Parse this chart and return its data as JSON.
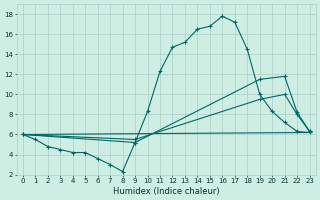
{
  "xlabel": "Humidex (Indice chaleur)",
  "bg_color": "#ceeee4",
  "grid_color": "#aacfc6",
  "line_color": "#006666",
  "xlim": [
    -0.5,
    23.5
  ],
  "ylim": [
    2,
    19
  ],
  "xticks": [
    0,
    1,
    2,
    3,
    4,
    5,
    6,
    7,
    8,
    9,
    10,
    11,
    12,
    13,
    14,
    15,
    16,
    17,
    18,
    19,
    20,
    21,
    22,
    23
  ],
  "yticks": [
    2,
    4,
    6,
    8,
    10,
    12,
    14,
    16,
    18
  ],
  "line1_x": [
    0,
    1,
    2,
    3,
    4,
    5,
    6,
    7,
    8,
    9,
    10,
    11,
    12,
    13,
    14,
    15,
    16,
    17,
    18,
    19,
    20,
    21,
    22,
    23
  ],
  "line1_y": [
    6.0,
    5.5,
    4.8,
    4.5,
    4.2,
    4.2,
    3.6,
    3.0,
    2.3,
    5.2,
    8.3,
    12.3,
    14.7,
    15.2,
    16.5,
    16.8,
    17.8,
    17.2,
    14.5,
    10.0,
    8.3,
    7.2,
    6.3,
    6.2
  ],
  "line2_x": [
    0,
    23
  ],
  "line2_y": [
    6.0,
    6.2
  ],
  "line3_x": [
    0,
    9,
    19,
    21,
    22,
    23
  ],
  "line3_y": [
    6.0,
    5.5,
    9.5,
    10.0,
    8.0,
    6.3
  ],
  "line4_x": [
    0,
    9,
    19,
    21,
    22,
    23
  ],
  "line4_y": [
    6.0,
    5.2,
    11.5,
    11.8,
    8.2,
    6.3
  ],
  "marker": "+"
}
